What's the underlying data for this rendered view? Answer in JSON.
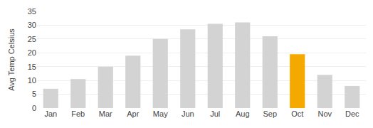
{
  "chart_data": {
    "type": "bar",
    "categories": [
      "Jan",
      "Feb",
      "Mar",
      "Apr",
      "May",
      "Jun",
      "Jul",
      "Aug",
      "Sep",
      "Oct",
      "Nov",
      "Dec"
    ],
    "values": [
      7,
      10.5,
      15,
      19,
      25,
      28.5,
      30.5,
      31,
      26,
      19.5,
      12,
      8
    ],
    "colors": [
      "#d3d3d3",
      "#d3d3d3",
      "#d3d3d3",
      "#d3d3d3",
      "#d3d3d3",
      "#d3d3d3",
      "#d3d3d3",
      "#d3d3d3",
      "#d3d3d3",
      "#f5a800",
      "#d3d3d3",
      "#d3d3d3"
    ],
    "ylabel": "Avg Temp Celsius",
    "ylim": [
      0,
      35
    ],
    "yticks": [
      0,
      5,
      10,
      15,
      20,
      25,
      30,
      35
    ],
    "grid": true
  }
}
